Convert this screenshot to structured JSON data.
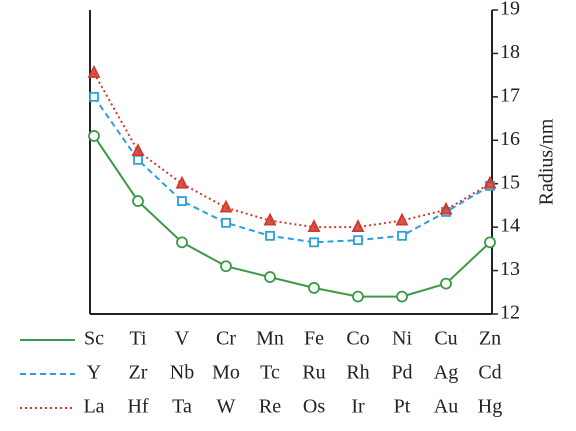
{
  "chart_data": {
    "type": "line",
    "y_label": "Radius/nm",
    "ylim": [
      12,
      19
    ],
    "yticks": [
      12,
      13,
      14,
      15,
      16,
      17,
      18,
      19
    ],
    "series": [
      {
        "color": "#3a9a48",
        "dash": "solid",
        "marker": "circle",
        "labels": [
          "Sc",
          "Ti",
          "V",
          "Cr",
          "Mn",
          "Fe",
          "Co",
          "Ni",
          "Cu",
          "Zn"
        ],
        "values": [
          16.1,
          14.6,
          13.65,
          13.1,
          12.85,
          12.6,
          12.4,
          12.4,
          12.7,
          13.65
        ]
      },
      {
        "color": "#2aa0de",
        "dash": "dashed",
        "marker": "square",
        "labels": [
          "Y",
          "Zr",
          "Nb",
          "Mo",
          "Tc",
          "Ru",
          "Rh",
          "Pd",
          "Ag",
          "Cd"
        ],
        "values": [
          17.0,
          15.55,
          14.6,
          14.1,
          13.8,
          13.65,
          13.7,
          13.8,
          14.35,
          14.95
        ]
      },
      {
        "color": "#d03a2e",
        "dash": "dotted",
        "marker": "triangle",
        "labels": [
          "La",
          "Hf",
          "Ta",
          "W",
          "Re",
          "Os",
          "Ir",
          "Pt",
          "Au",
          "Hg"
        ],
        "values": [
          17.55,
          15.75,
          15.0,
          14.45,
          14.15,
          14.0,
          14.0,
          14.15,
          14.4,
          15.0
        ]
      }
    ]
  }
}
